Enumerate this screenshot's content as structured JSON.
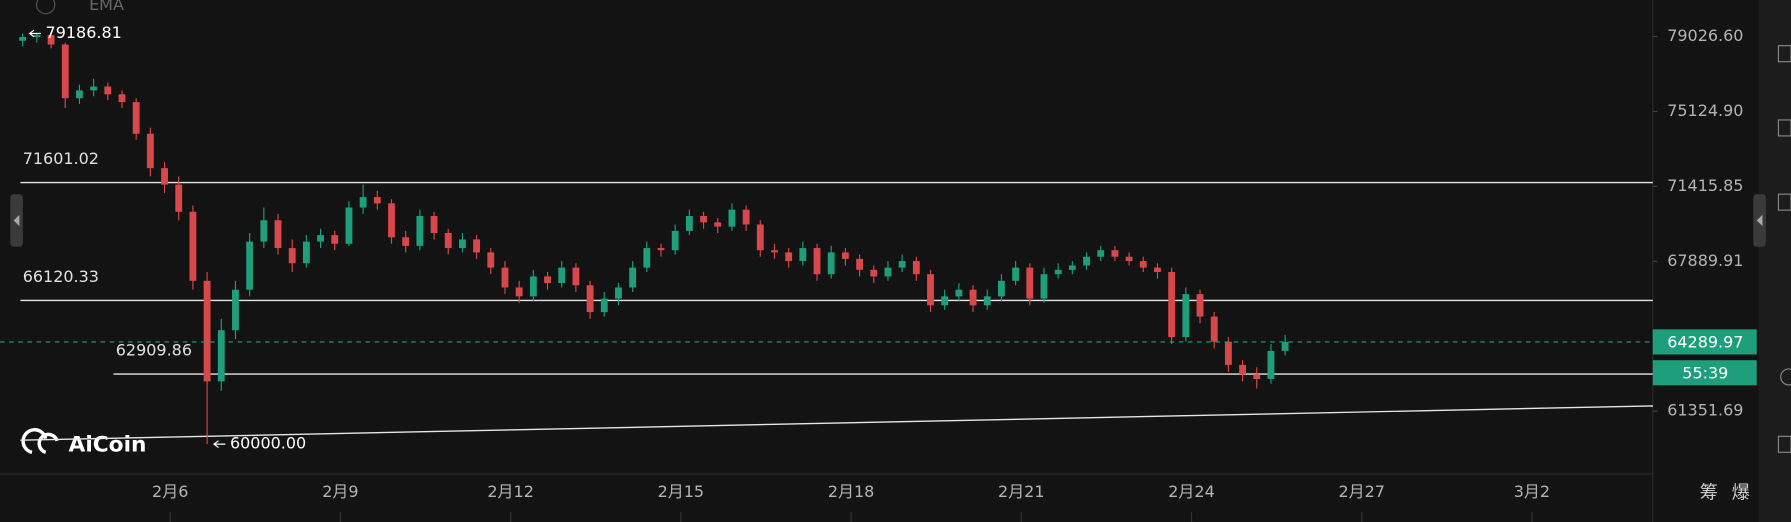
{
  "chart_data": {
    "type": "candlestick",
    "indicator": "EMA",
    "watermark": "AiCoin",
    "log_scale": true,
    "grid": false,
    "up_color": "#1f9e7c",
    "down_color": "#d8484a",
    "xlim": [
      3,
      32.13
    ],
    "ylim": [
      58800,
      81000
    ],
    "yticks": [
      {
        "value": 79026.6,
        "label": "79026.60"
      },
      {
        "value": 75124.9,
        "label": "75124.90"
      },
      71415.85,
      67889.91,
      61351.69
    ],
    "xticks": [
      {
        "value": 6,
        "label": "2月6"
      },
      {
        "value": 9,
        "label": "2月9"
      },
      {
        "value": 12,
        "label": "2月12"
      },
      {
        "value": 15,
        "label": "2月15"
      },
      {
        "value": 18,
        "label": "2月18"
      },
      {
        "value": 21,
        "label": "2月21"
      },
      {
        "value": 24,
        "label": "2月24"
      },
      {
        "value": 27,
        "label": "2月27"
      },
      {
        "value": 30,
        "label": "3月2"
      }
    ],
    "x": [
      3.4,
      3.65,
      3.9,
      4.15,
      4.4,
      4.65,
      4.9,
      5.15,
      5.4,
      5.65,
      5.9,
      6.15,
      6.4,
      6.65,
      6.9,
      7.15,
      7.4,
      7.65,
      7.9,
      8.15,
      8.4,
      8.65,
      8.9,
      9.15,
      9.4,
      9.65,
      9.9,
      10.15,
      10.4,
      10.65,
      10.9,
      11.15,
      11.4,
      11.65,
      11.9,
      12.15,
      12.4,
      12.65,
      12.9,
      13.15,
      13.4,
      13.65,
      13.9,
      14.15,
      14.4,
      14.65,
      14.9,
      15.15,
      15.4,
      15.65,
      15.9,
      16.15,
      16.4,
      16.65,
      16.9,
      17.15,
      17.4,
      17.65,
      17.9,
      18.15,
      18.4,
      18.65,
      18.9,
      19.15,
      19.4,
      19.65,
      19.9,
      20.15,
      20.4,
      20.65,
      20.9,
      21.15,
      21.4,
      21.65,
      21.9,
      22.15,
      22.4,
      22.65,
      22.9,
      23.15,
      23.4,
      23.65,
      23.9,
      24.15,
      24.4,
      24.65,
      24.9,
      25.15,
      25.4,
      25.65
    ],
    "candles": [
      [
        78800,
        79186.81,
        78500,
        79000
      ],
      [
        79000,
        79150,
        78700,
        79100
      ],
      [
        79100,
        79150,
        78400,
        78600
      ],
      [
        78600,
        78700,
        75300,
        75800
      ],
      [
        75800,
        76500,
        75500,
        76200
      ],
      [
        76200,
        76800,
        75900,
        76400
      ],
      [
        76400,
        76600,
        75700,
        76000
      ],
      [
        76000,
        76200,
        75300,
        75600
      ],
      [
        75600,
        75800,
        73700,
        74000
      ],
      [
        74000,
        74300,
        71900,
        72300
      ],
      [
        72300,
        72600,
        71100,
        71500
      ],
      [
        71500,
        71900,
        69800,
        70200
      ],
      [
        70200,
        70500,
        66600,
        67000
      ],
      [
        67000,
        67400,
        60000,
        62600
      ],
      [
        62600,
        65300,
        62200,
        64800
      ],
      [
        64800,
        67000,
        64400,
        66600
      ],
      [
        66600,
        69200,
        66300,
        68800
      ],
      [
        68800,
        70400,
        68500,
        69800
      ],
      [
        69800,
        70100,
        68200,
        68500
      ],
      [
        68500,
        68900,
        67400,
        67800
      ],
      [
        67800,
        69100,
        67600,
        68800
      ],
      [
        68800,
        69400,
        68500,
        69100
      ],
      [
        69100,
        69300,
        68400,
        68700
      ],
      [
        68700,
        70700,
        68600,
        70400
      ],
      [
        70400,
        71500,
        70100,
        70900
      ],
      [
        70900,
        71200,
        70300,
        70600
      ],
      [
        70600,
        70800,
        68700,
        69000
      ],
      [
        69000,
        69300,
        68300,
        68600
      ],
      [
        68600,
        70300,
        68400,
        70000
      ],
      [
        70000,
        70200,
        68900,
        69200
      ],
      [
        69200,
        69400,
        68200,
        68500
      ],
      [
        68500,
        69200,
        68300,
        68900
      ],
      [
        68900,
        69100,
        68000,
        68300
      ],
      [
        68300,
        68500,
        67300,
        67600
      ],
      [
        67600,
        67900,
        66400,
        66700
      ],
      [
        66700,
        67000,
        66000,
        66300
      ],
      [
        66300,
        67500,
        66100,
        67200
      ],
      [
        67200,
        67400,
        66600,
        66900
      ],
      [
        66900,
        67900,
        66700,
        67600
      ],
      [
        67600,
        67800,
        66500,
        66800
      ],
      [
        66800,
        67000,
        65300,
        65600
      ],
      [
        65600,
        66500,
        65400,
        66200
      ],
      [
        66200,
        66900,
        65900,
        66700
      ],
      [
        66700,
        67900,
        66500,
        67600
      ],
      [
        67600,
        68800,
        67400,
        68500
      ],
      [
        68500,
        68700,
        68100,
        68400
      ],
      [
        68400,
        69600,
        68200,
        69300
      ],
      [
        69300,
        70300,
        69100,
        70000
      ],
      [
        70000,
        70200,
        69400,
        69700
      ],
      [
        69700,
        69900,
        69200,
        69500
      ],
      [
        69500,
        70600,
        69300,
        70300
      ],
      [
        70300,
        70500,
        69300,
        69600
      ],
      [
        69600,
        69800,
        68100,
        68400
      ],
      [
        68400,
        68700,
        68000,
        68300
      ],
      [
        68300,
        68500,
        67600,
        67900
      ],
      [
        67900,
        68800,
        67700,
        68500
      ],
      [
        68500,
        68700,
        67000,
        67300
      ],
      [
        67300,
        68600,
        67100,
        68300
      ],
      [
        68300,
        68500,
        67700,
        68000
      ],
      [
        68000,
        68200,
        67200,
        67500
      ],
      [
        67500,
        67700,
        66900,
        67200
      ],
      [
        67200,
        67900,
        67000,
        67600
      ],
      [
        67600,
        68200,
        67400,
        67900
      ],
      [
        67900,
        68100,
        67000,
        67300
      ],
      [
        67300,
        67500,
        65600,
        65900
      ],
      [
        65900,
        66600,
        65700,
        66300
      ],
      [
        66300,
        66900,
        66100,
        66600
      ],
      [
        66600,
        66800,
        65600,
        65900
      ],
      [
        65900,
        66600,
        65700,
        66300
      ],
      [
        66300,
        67300,
        66100,
        67000
      ],
      [
        67000,
        67900,
        66800,
        67600
      ],
      [
        67600,
        67800,
        65900,
        66200
      ],
      [
        66200,
        67600,
        66000,
        67300
      ],
      [
        67300,
        67800,
        67100,
        67500
      ],
      [
        67500,
        67900,
        67300,
        67700
      ],
      [
        67700,
        68300,
        67500,
        68100
      ],
      [
        68100,
        68600,
        67900,
        68400
      ],
      [
        68400,
        68600,
        67900,
        68100
      ],
      [
        68100,
        68300,
        67700,
        67900
      ],
      [
        67900,
        68100,
        67400,
        67600
      ],
      [
        67600,
        67800,
        67100,
        67400
      ],
      [
        67400,
        67600,
        64200,
        64500
      ],
      [
        64500,
        66700,
        64300,
        66400
      ],
      [
        66400,
        66600,
        65100,
        65400
      ],
      [
        65400,
        65600,
        64000,
        64300
      ],
      [
        64300,
        64500,
        63000,
        63300
      ],
      [
        63300,
        63500,
        62600,
        62900
      ],
      [
        62900,
        63200,
        62300,
        62700
      ],
      [
        62700,
        64200,
        62500,
        63900
      ],
      [
        63900,
        64600,
        63700,
        64289.97
      ]
    ],
    "high_marker": {
      "x": 3.4,
      "value": 79186.81
    },
    "low_marker": {
      "x": 6.65,
      "value": 60000,
      "label": "60000.00"
    },
    "levels": [
      {
        "x": 3.36,
        "value": 71601.02
      },
      {
        "x": 3.36,
        "value": 66120.33
      },
      {
        "x": 5.0,
        "value": 62909.86
      }
    ],
    "trendline": {
      "x": [
        3.36,
        32.13
      ],
      "y": [
        60160,
        61570
      ]
    },
    "last_price": 64289.97,
    "countdown": "55:39",
    "buttons": [
      "筹",
      "爆"
    ]
  }
}
